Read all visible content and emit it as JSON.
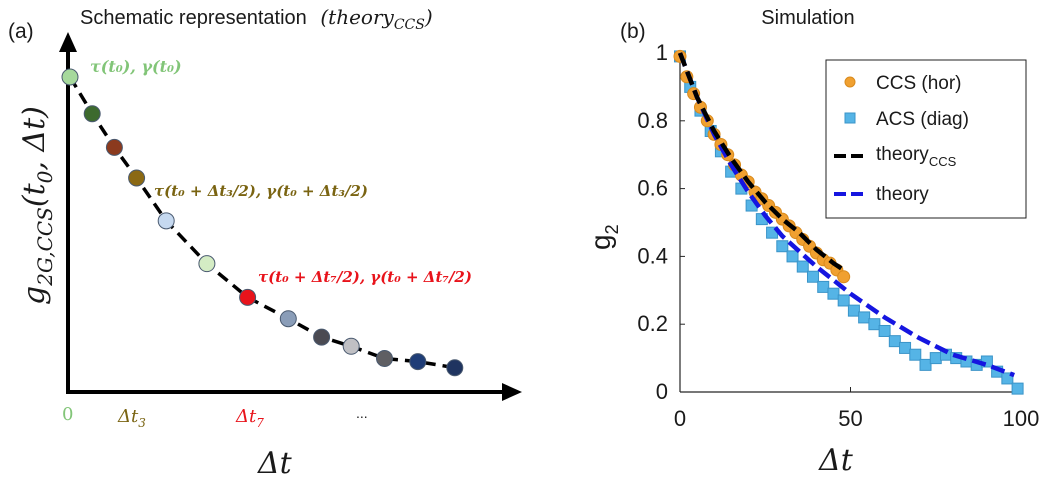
{
  "panels": {
    "a": {
      "label": "(a)",
      "title": "Schematic representation",
      "title_math": "(theory",
      "title_math_sub": "CCS",
      "title_math_close": ")",
      "ylabel_main": "g",
      "ylabel_sub": "2G,CCS",
      "ylabel_args": "(t",
      "ylabel_args_sub": "0",
      "ylabel_args_rest": ", Δt)",
      "xlabel": "Δt",
      "ticks": {
        "t0": "0",
        "t3_main": "Δt",
        "t3_sub": "3",
        "t7_main": "Δt",
        "t7_sub": "7",
        "ellipsis": "..."
      },
      "annotations": {
        "first": "τ(t₀), γ(t₀)",
        "mid": "τ(t₀ + Δt₃/2), γ(t₀ + Δt₃/2)",
        "red": "τ(t₀ + Δt₇/2), γ(t₀ + Δt₇/2)"
      },
      "colors": {
        "first": "#82c578",
        "mid": "#7a6412",
        "red": "#e8131b"
      }
    },
    "b": {
      "label": "(b)",
      "title": "Simulation",
      "ylabel_main": "g",
      "ylabel_sub": "2",
      "xlabel": "Δt",
      "legend": {
        "ccs": "CCS (hor)",
        "acs": "ACS (diag)",
        "theory_ccs_main": "theory",
        "theory_ccs_sub": "CCS",
        "theory": "theory"
      }
    }
  },
  "chart_data": [
    {
      "type": "scatter",
      "title": "Schematic representation (theoryCCS)",
      "xlabel": "Δt",
      "ylabel": "g2G,CCS(t0, Δt)",
      "x_ticks": [
        "0",
        "Δt3",
        "Δt7",
        "..."
      ],
      "points": [
        {
          "x": 0,
          "y": 1.0,
          "color": "#a6d99c"
        },
        {
          "x": 0.6,
          "y": 0.88,
          "color": "#3d6a2e"
        },
        {
          "x": 1.2,
          "y": 0.77,
          "color": "#8b3a1e"
        },
        {
          "x": 1.8,
          "y": 0.67,
          "color": "#8b6914"
        },
        {
          "x": 2.6,
          "y": 0.53,
          "color": "#c6d9f0"
        },
        {
          "x": 3.7,
          "y": 0.39,
          "color": "#d4ecc4"
        },
        {
          "x": 4.8,
          "y": 0.28,
          "color": "#e8131b"
        },
        {
          "x": 5.9,
          "y": 0.21,
          "color": "#8a9db8"
        },
        {
          "x": 6.8,
          "y": 0.15,
          "color": "#4a4a52"
        },
        {
          "x": 7.6,
          "y": 0.12,
          "color": "#c0c0c4"
        },
        {
          "x": 8.5,
          "y": 0.08,
          "color": "#5f5f63"
        },
        {
          "x": 9.4,
          "y": 0.07,
          "color": "#1f3d77"
        },
        {
          "x": 10.4,
          "y": 0.05,
          "color": "#1f3460"
        }
      ],
      "curve": {
        "style": "dashed",
        "color": "#000000"
      },
      "annotations": [
        "τ(t0), γ(t0)",
        "τ(t0 + Δt3/2), γ(t0 + Δt3/2)",
        "τ(t0 + Δt7/2), γ(t0 + Δt7/2)"
      ]
    },
    {
      "type": "scatter",
      "title": "Simulation",
      "xlabel": "Δt",
      "ylabel": "g2",
      "xlim": [
        0,
        100
      ],
      "ylim": [
        0,
        1
      ],
      "x_ticks": [
        0,
        50,
        100
      ],
      "y_ticks": [
        0,
        0.2,
        0.4,
        0.6,
        0.8,
        1
      ],
      "legend_position": "top-right",
      "series": [
        {
          "name": "CCS (hor)",
          "marker": "circle",
          "color": "#f0a030",
          "x": [
            0,
            2,
            4,
            6,
            8,
            10,
            12,
            14,
            16,
            18,
            20,
            22,
            24,
            26,
            28,
            30,
            32,
            34,
            36,
            38,
            40,
            42,
            44,
            46,
            48
          ],
          "y": [
            0.99,
            0.93,
            0.88,
            0.84,
            0.8,
            0.76,
            0.73,
            0.7,
            0.67,
            0.64,
            0.62,
            0.59,
            0.57,
            0.55,
            0.53,
            0.51,
            0.49,
            0.47,
            0.45,
            0.43,
            0.41,
            0.39,
            0.38,
            0.36,
            0.34
          ]
        },
        {
          "name": "ACS (diag)",
          "marker": "square",
          "color": "#55b4e6",
          "x": [
            0,
            3,
            6,
            9,
            12,
            15,
            18,
            21,
            24,
            27,
            30,
            33,
            36,
            39,
            42,
            45,
            48,
            51,
            54,
            57,
            60,
            63,
            66,
            69,
            72,
            75,
            78,
            81,
            84,
            87,
            90,
            93,
            96,
            99
          ],
          "y": [
            0.99,
            0.9,
            0.83,
            0.77,
            0.71,
            0.65,
            0.6,
            0.55,
            0.51,
            0.47,
            0.43,
            0.4,
            0.37,
            0.34,
            0.31,
            0.29,
            0.27,
            0.24,
            0.22,
            0.2,
            0.18,
            0.15,
            0.13,
            0.11,
            0.08,
            0.1,
            0.11,
            0.1,
            0.09,
            0.08,
            0.09,
            0.06,
            0.04,
            0.01
          ]
        },
        {
          "name": "theoryCCS",
          "style": "dashed",
          "color": "#000000",
          "x": [
            0,
            5,
            10,
            15,
            20,
            25,
            30,
            35,
            40,
            45,
            48
          ],
          "y": [
            1.0,
            0.87,
            0.77,
            0.69,
            0.62,
            0.56,
            0.51,
            0.47,
            0.42,
            0.38,
            0.36
          ]
        },
        {
          "name": "theory",
          "style": "dashed",
          "color": "#1515e0",
          "x": [
            0,
            5,
            10,
            15,
            20,
            25,
            30,
            40,
            50,
            60,
            70,
            80,
            90,
            98
          ],
          "y": [
            1.0,
            0.87,
            0.76,
            0.67,
            0.59,
            0.52,
            0.46,
            0.37,
            0.29,
            0.22,
            0.16,
            0.11,
            0.08,
            0.05
          ]
        }
      ]
    }
  ]
}
